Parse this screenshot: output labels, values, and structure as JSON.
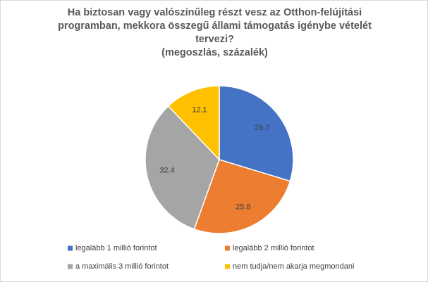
{
  "chart_data": {
    "type": "pie",
    "title": "Ha biztosan vagy valószínűleg részt vesz az Otthon-felújítási programban, mekkora összegű állami támogatás igénybe vételét tervezi?",
    "subtitle": "(megoszlás, százalék)",
    "categories": [
      "legalább 1 millió forintot",
      "legalább 2 millió forintot",
      "a maximális 3 millió forintot",
      "nem tudja/nem akarja megmondani"
    ],
    "values": [
      29.7,
      25.8,
      32.4,
      12.1
    ],
    "colors": [
      "#4472c4",
      "#ed7d31",
      "#a5a5a5",
      "#ffc000"
    ],
    "legend": "bottom"
  }
}
